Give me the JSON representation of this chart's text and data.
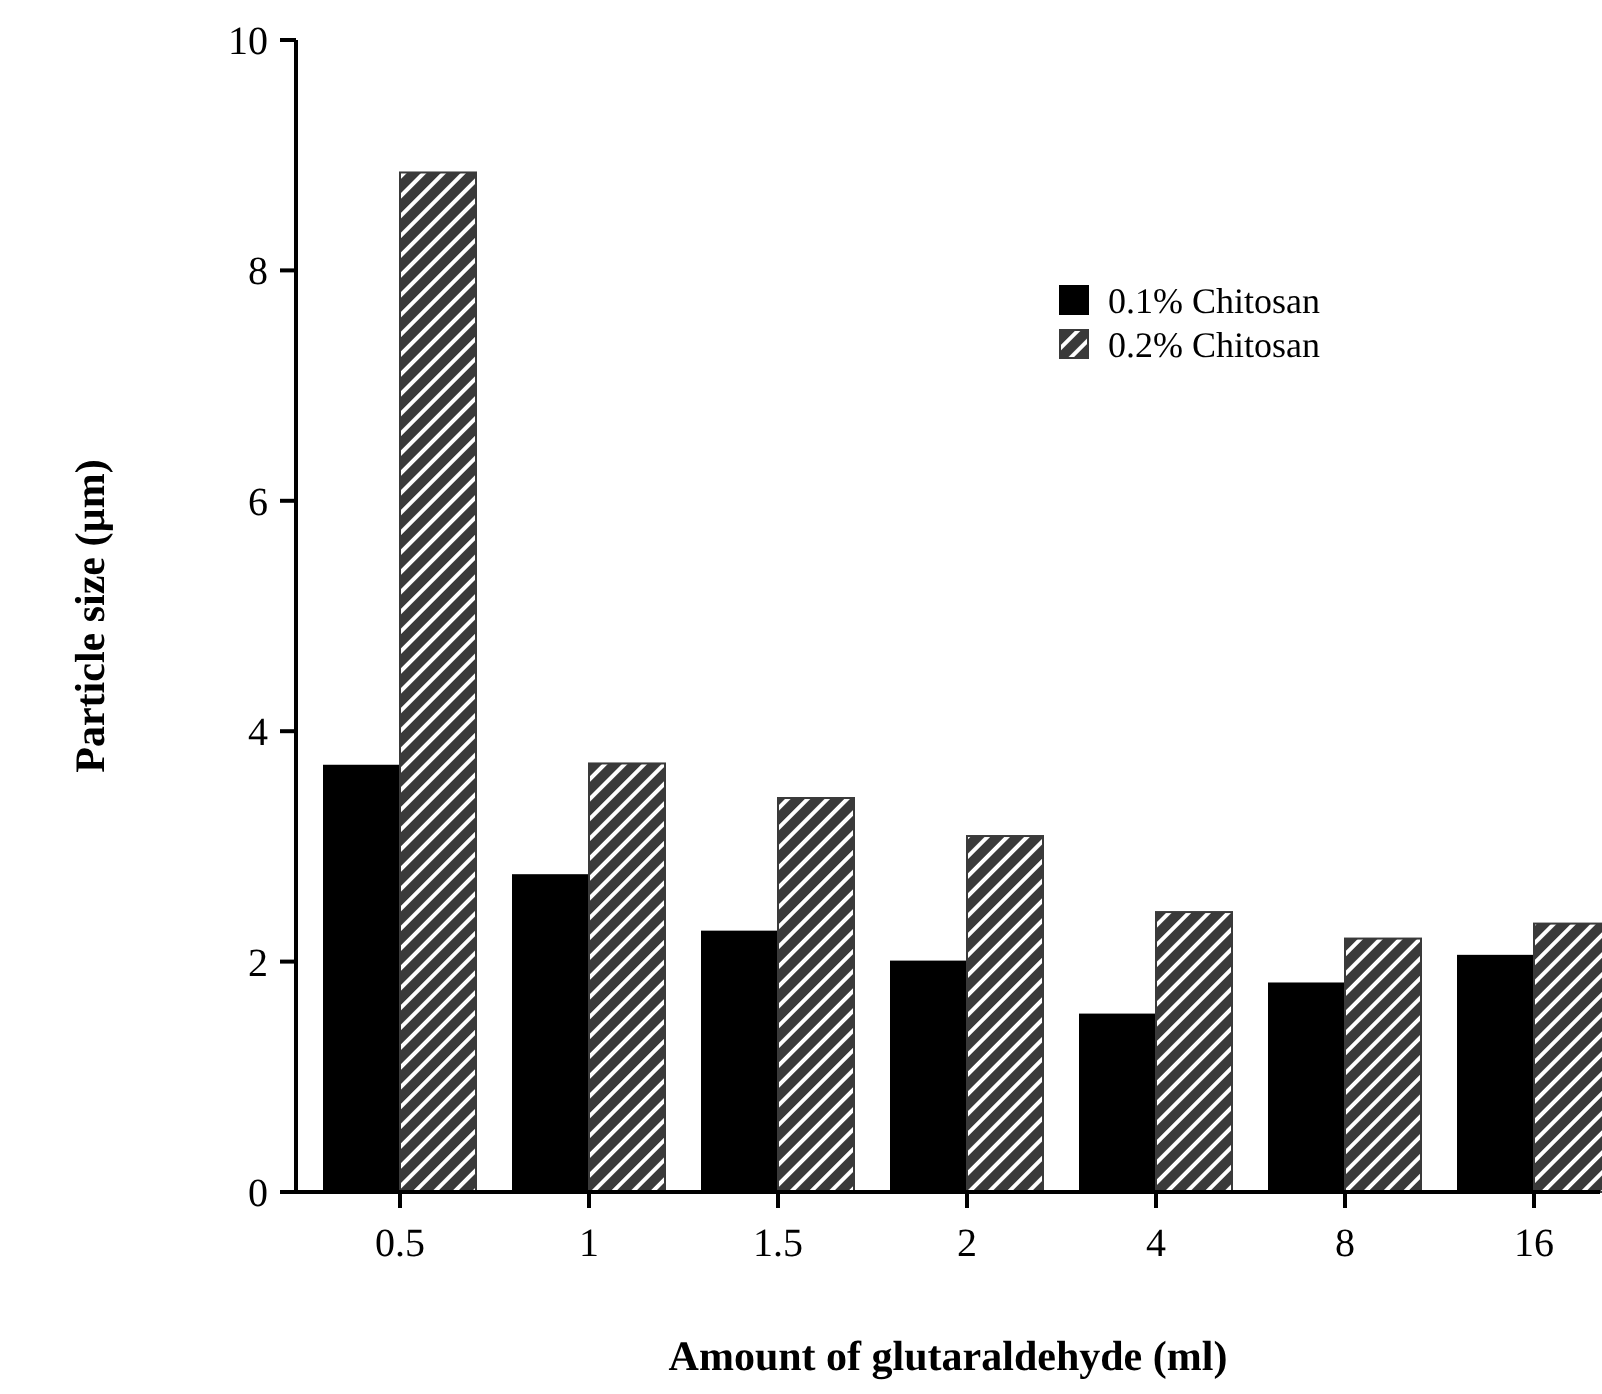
{
  "chart_data": {
    "type": "bar",
    "xlabel": "Amount of glutaraldehyde (ml)",
    "ylabel": "Particle size (µm)",
    "categories": [
      "0.5",
      "1",
      "1.5",
      "2",
      "4",
      "8",
      "16"
    ],
    "series": [
      {
        "name": "0.1% Chitosan",
        "color": "#000000",
        "values": [
          3.7,
          2.75,
          2.26,
          2.0,
          1.54,
          1.81,
          2.05
        ]
      },
      {
        "name": "0.2% Chitosan",
        "color": "#3a3a3a",
        "values": [
          8.85,
          3.72,
          3.42,
          3.09,
          2.43,
          2.2,
          2.33
        ]
      }
    ],
    "ylim": [
      0,
      10
    ],
    "yticks": [
      0,
      2,
      4,
      6,
      8,
      10
    ],
    "grid": false,
    "legend": "top right"
  }
}
